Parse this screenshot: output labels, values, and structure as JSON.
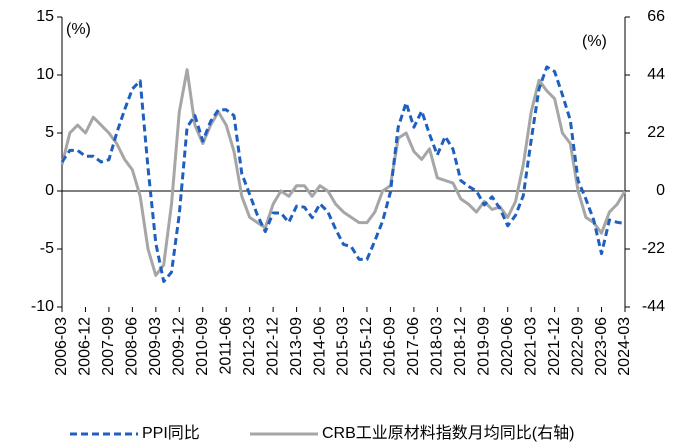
{
  "chart_data": {
    "type": "line",
    "y_label": "(%)",
    "y2_label": "(%)",
    "categories": [
      "2006-03",
      null,
      null,
      "2006-12",
      null,
      null,
      "2007-09",
      null,
      null,
      "2008-06",
      null,
      null,
      "2009-03",
      null,
      null,
      "2009-12",
      null,
      null,
      "2010-09",
      null,
      null,
      "2011-06",
      null,
      null,
      "2012-03",
      null,
      null,
      "2012-12",
      null,
      null,
      "2013-09",
      null,
      null,
      "2014-06",
      null,
      null,
      "2015-03",
      null,
      null,
      "2015-12",
      null,
      null,
      "2016-09",
      null,
      null,
      "2017-06",
      null,
      null,
      "2018-03",
      null,
      null,
      "2018-12",
      null,
      null,
      "2019-09",
      null,
      null,
      "2020-06",
      null,
      null,
      "2021-03",
      null,
      null,
      "2021-12",
      null,
      null,
      "2022-09",
      null,
      null,
      "2023-06",
      null,
      null,
      "2024-03"
    ],
    "series": [
      {
        "name": "PPI同比",
        "color": "#1f5fc0",
        "dashed": true,
        "axis": "y",
        "values": [
          2.5,
          3.5,
          3.5,
          3.0,
          3.0,
          2.5,
          2.7,
          5.0,
          7.0,
          8.8,
          9.5,
          2.0,
          -4.5,
          -7.8,
          -7.0,
          -2.0,
          5.5,
          6.5,
          4.3,
          6.0,
          7.0,
          7.0,
          6.5,
          1.5,
          -0.3,
          -2.1,
          -3.5,
          -1.9,
          -1.9,
          -2.7,
          -1.3,
          -1.4,
          -2.3,
          -1.1,
          -1.8,
          -3.3,
          -4.6,
          -4.8,
          -5.9,
          -5.9,
          -4.3,
          -2.6,
          -0.1,
          5.5,
          7.6,
          5.5,
          6.9,
          4.9,
          3.1,
          4.7,
          3.6,
          0.9,
          0.4,
          0.0,
          -1.2,
          -0.5,
          -1.5,
          -3.0,
          -2.1,
          -0.4,
          4.4,
          8.8,
          10.7,
          10.3,
          8.3,
          6.1,
          0.9,
          -0.7,
          -2.5,
          -5.4,
          -2.5,
          -2.7,
          -2.8
        ]
      },
      {
        "name": "CRB工业原材料指数月均同比(右轴)",
        "color": "#a6a6a6",
        "dashed": false,
        "axis": "y2",
        "values": [
          10,
          22,
          25,
          22,
          28,
          25,
          22,
          18,
          12,
          8,
          -2,
          -22,
          -32,
          -28,
          -5,
          30,
          46,
          25,
          18,
          25,
          30,
          25,
          15,
          -2,
          -10,
          -12,
          -14,
          -5,
          0,
          -2,
          2,
          2,
          -2,
          2,
          0,
          -5,
          -8,
          -10,
          -12,
          -12,
          -8,
          0,
          2,
          20,
          22,
          15,
          12,
          16,
          5,
          4,
          3,
          -3,
          -5,
          -8,
          -4,
          -7,
          -6,
          -10,
          -4,
          10,
          30,
          42,
          38,
          35,
          22,
          18,
          0,
          -10,
          -12,
          -16,
          -8,
          -5,
          0
        ]
      }
    ],
    "ylim": [
      -10,
      15
    ],
    "yticks": [
      -10,
      -5,
      0,
      5,
      10,
      15
    ],
    "y2lim": [
      -44,
      66
    ],
    "y2ticks": [
      -44,
      -22,
      0,
      22,
      44,
      66
    ]
  }
}
